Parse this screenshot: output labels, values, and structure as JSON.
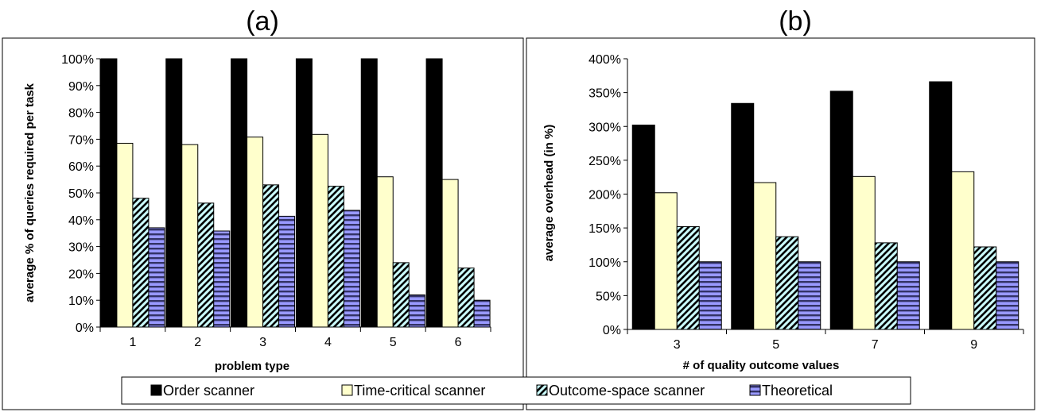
{
  "chart_data": [
    {
      "type": "bar",
      "title": "(a)",
      "xlabel": "problem type",
      "ylabel": "average % of queries required per task",
      "categories": [
        "1",
        "2",
        "3",
        "4",
        "5",
        "6"
      ],
      "ylim": [
        0,
        100
      ],
      "yticks": [
        "0%",
        "10%",
        "20%",
        "30%",
        "40%",
        "50%",
        "60%",
        "70%",
        "80%",
        "90%",
        "100%"
      ],
      "series": [
        {
          "name": "Order scanner",
          "values": [
            100,
            100,
            100,
            100,
            100,
            100
          ]
        },
        {
          "name": "Time-critical scanner",
          "values": [
            68.5,
            68,
            70.8,
            71.8,
            56,
            55
          ]
        },
        {
          "name": "Outcome-space scanner",
          "values": [
            48,
            46.2,
            53,
            52.5,
            24,
            22
          ]
        },
        {
          "name": "Theoretical",
          "values": [
            37,
            35.8,
            41.3,
            43.5,
            12,
            10
          ]
        }
      ]
    },
    {
      "type": "bar",
      "title": "(b)",
      "xlabel": "# of quality outcome values",
      "ylabel": "average overhead (in %)",
      "categories": [
        "3",
        "5",
        "7",
        "9"
      ],
      "ylim": [
        0,
        400
      ],
      "yticks": [
        "0%",
        "50%",
        "100%",
        "150%",
        "200%",
        "250%",
        "300%",
        "350%",
        "400%"
      ],
      "series": [
        {
          "name": "Order scanner",
          "values": [
            302,
            334,
            352,
            366
          ]
        },
        {
          "name": "Time-critical scanner",
          "values": [
            202,
            217,
            226,
            233
          ]
        },
        {
          "name": "Outcome-space scanner",
          "values": [
            152,
            137,
            128,
            122
          ]
        },
        {
          "name": "Theoretical",
          "values": [
            100,
            100,
            100,
            100
          ]
        }
      ]
    }
  ],
  "legend": {
    "placement": "bottom",
    "items": [
      {
        "label": "Order scanner",
        "style": "black"
      },
      {
        "label": "Time-critical scanner",
        "style": "yellow"
      },
      {
        "label": "Outcome-space scanner",
        "style": "diagonal"
      },
      {
        "label": "Theoretical",
        "style": "horizontal"
      }
    ]
  },
  "colors": {
    "order": "#000000",
    "time_critical": "#ffffcc",
    "outcome_hatch_bg": "#ccffff",
    "outcome_hatch_line": "#000000",
    "theoretical_bg": "#9999ff",
    "theoretical_line": "#333366"
  }
}
